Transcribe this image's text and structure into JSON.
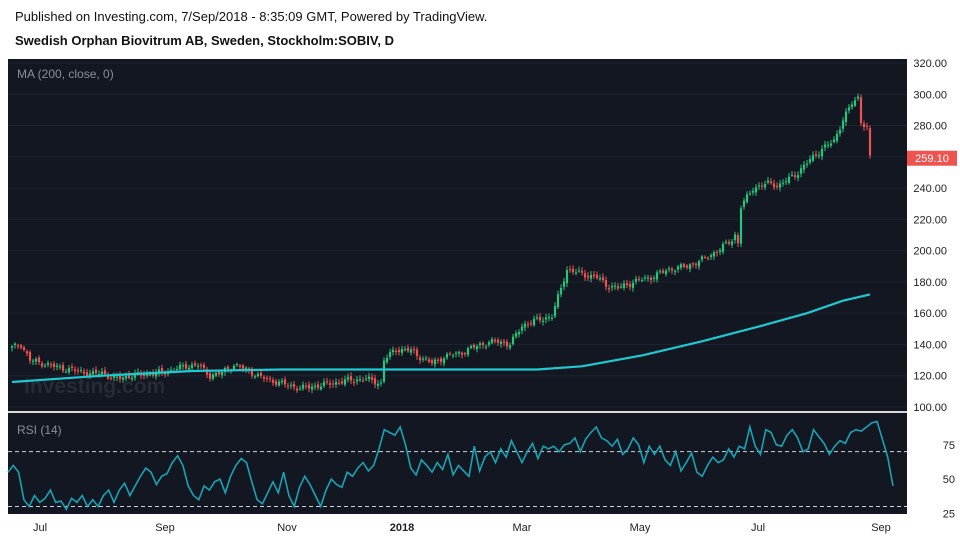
{
  "header": {
    "published": "Published on Investing.com, 7/Sep/2018 - 8:35:09 GMT, Powered by TradingView.",
    "symbol": "Swedish Orphan Biovitrum AB, Sweden, Stockholm:SOBIV, D"
  },
  "watermark": "Investing.com",
  "colors": {
    "background": "#131722",
    "up": "#26c77a",
    "down": "#ef5350",
    "ma": "#1fc9d2",
    "rsi": "#1aa3b4",
    "price_tag": "#ef5350"
  },
  "chart_data": [
    {
      "type": "candlestick",
      "indicator_label": "MA (200, close, 0)",
      "last_price_label": "259.10",
      "ylim": [
        100,
        320
      ],
      "y_ticks": [
        "320.00",
        "300.00",
        "280.00",
        "260.00",
        "240.00",
        "220.00",
        "200.00",
        "180.00",
        "160.00",
        "140.00",
        "120.00",
        "100.00"
      ],
      "y_tick_values": [
        320,
        300,
        280,
        260,
        240,
        220,
        200,
        180,
        160,
        140,
        120,
        100
      ],
      "x_ticks": [
        "Jul",
        "Sep",
        "Nov",
        "2018",
        "Mar",
        "May",
        "Jul",
        "Sep"
      ],
      "price_anchors": [
        [
          0,
          138
        ],
        [
          3,
          140
        ],
        [
          6,
          130
        ],
        [
          10,
          128
        ],
        [
          16,
          125
        ],
        [
          22,
          123
        ],
        [
          27,
          121
        ],
        [
          30,
          122
        ],
        [
          34,
          118
        ],
        [
          40,
          120
        ],
        [
          50,
          122
        ],
        [
          58,
          126
        ],
        [
          62,
          127
        ],
        [
          66,
          120
        ],
        [
          70,
          122
        ],
        [
          74,
          127
        ],
        [
          78,
          124
        ],
        [
          83,
          119
        ],
        [
          90,
          115
        ],
        [
          96,
          112
        ],
        [
          100,
          113
        ],
        [
          106,
          115
        ],
        [
          112,
          117
        ],
        [
          118,
          118
        ],
        [
          123,
          115
        ],
        [
          124,
          130
        ],
        [
          128,
          137
        ],
        [
          133,
          136
        ],
        [
          136,
          132
        ],
        [
          140,
          128
        ],
        [
          144,
          132
        ],
        [
          150,
          135
        ],
        [
          156,
          140
        ],
        [
          162,
          142
        ],
        [
          166,
          140
        ],
        [
          170,
          152
        ],
        [
          174,
          155
        ],
        [
          178,
          157
        ],
        [
          180,
          158
        ],
        [
          182,
          170
        ],
        [
          185,
          188
        ],
        [
          190,
          185
        ],
        [
          195,
          183
        ],
        [
          198,
          178
        ],
        [
          202,
          176
        ],
        [
          207,
          180
        ],
        [
          213,
          183
        ],
        [
          219,
          188
        ],
        [
          225,
          190
        ],
        [
          231,
          195
        ],
        [
          236,
          201
        ],
        [
          240,
          207
        ],
        [
          241,
          210
        ],
        [
          242,
          205
        ],
        [
          243,
          228
        ],
        [
          247,
          240
        ],
        [
          252,
          243
        ],
        [
          256,
          242
        ],
        [
          259,
          246
        ],
        [
          262,
          250
        ],
        [
          266,
          258
        ],
        [
          270,
          265
        ],
        [
          274,
          270
        ],
        [
          277,
          284
        ],
        [
          280,
          294
        ],
        [
          282,
          298
        ],
        [
          283,
          283
        ],
        [
          285,
          278
        ],
        [
          286,
          259
        ]
      ],
      "ma_line": [
        [
          0,
          116
        ],
        [
          30,
          120
        ],
        [
          60,
          123
        ],
        [
          90,
          124
        ],
        [
          120,
          124
        ],
        [
          150,
          124
        ],
        [
          175,
          124
        ],
        [
          190,
          126
        ],
        [
          210,
          133
        ],
        [
          230,
          142
        ],
        [
          250,
          152
        ],
        [
          265,
          160
        ],
        [
          277,
          168
        ],
        [
          286,
          172
        ]
      ],
      "rsi": {
        "label": "RSI (14)",
        "ylim": [
          26,
          96
        ],
        "y_ticks": [
          "75",
          "50",
          "25"
        ],
        "y_tick_values": [
          75,
          50,
          25
        ],
        "bands": [
          70,
          30
        ],
        "values": [
          [
            0,
            55
          ],
          [
            2,
            60
          ],
          [
            4,
            55
          ],
          [
            6,
            35
          ],
          [
            8,
            30
          ],
          [
            10,
            38
          ],
          [
            12,
            33
          ],
          [
            14,
            36
          ],
          [
            16,
            42
          ],
          [
            18,
            33
          ],
          [
            20,
            34
          ],
          [
            22,
            28
          ],
          [
            24,
            36
          ],
          [
            26,
            33
          ],
          [
            28,
            38
          ],
          [
            30,
            30
          ],
          [
            32,
            35
          ],
          [
            34,
            30
          ],
          [
            36,
            38
          ],
          [
            38,
            42
          ],
          [
            40,
            33
          ],
          [
            42,
            42
          ],
          [
            44,
            47
          ],
          [
            46,
            38
          ],
          [
            48,
            45
          ],
          [
            50,
            52
          ],
          [
            52,
            58
          ],
          [
            54,
            55
          ],
          [
            56,
            46
          ],
          [
            58,
            52
          ],
          [
            60,
            54
          ],
          [
            62,
            62
          ],
          [
            64,
            67
          ],
          [
            66,
            60
          ],
          [
            68,
            45
          ],
          [
            70,
            38
          ],
          [
            72,
            35
          ],
          [
            74,
            45
          ],
          [
            76,
            42
          ],
          [
            78,
            48
          ],
          [
            80,
            50
          ],
          [
            82,
            40
          ],
          [
            84,
            52
          ],
          [
            86,
            60
          ],
          [
            88,
            65
          ],
          [
            90,
            62
          ],
          [
            92,
            48
          ],
          [
            94,
            35
          ],
          [
            96,
            32
          ],
          [
            98,
            40
          ],
          [
            100,
            48
          ],
          [
            102,
            40
          ],
          [
            104,
            55
          ],
          [
            106,
            38
          ],
          [
            108,
            30
          ],
          [
            110,
            44
          ],
          [
            112,
            52
          ],
          [
            114,
            46
          ],
          [
            116,
            38
          ],
          [
            118,
            30
          ],
          [
            120,
            42
          ],
          [
            122,
            50
          ],
          [
            124,
            46
          ],
          [
            126,
            44
          ],
          [
            128,
            55
          ],
          [
            130,
            52
          ],
          [
            132,
            58
          ],
          [
            134,
            62
          ],
          [
            136,
            56
          ],
          [
            138,
            60
          ],
          [
            140,
            72
          ],
          [
            142,
            86
          ],
          [
            144,
            84
          ],
          [
            146,
            82
          ],
          [
            148,
            88
          ],
          [
            150,
            75
          ],
          [
            152,
            58
          ],
          [
            154,
            53
          ],
          [
            156,
            64
          ],
          [
            158,
            60
          ],
          [
            160,
            55
          ],
          [
            162,
            62
          ],
          [
            164,
            57
          ],
          [
            166,
            68
          ],
          [
            168,
            53
          ],
          [
            170,
            60
          ],
          [
            172,
            56
          ],
          [
            174,
            52
          ],
          [
            176,
            74
          ],
          [
            178,
            56
          ],
          [
            180,
            66
          ],
          [
            182,
            70
          ],
          [
            184,
            62
          ],
          [
            186,
            72
          ],
          [
            188,
            66
          ],
          [
            190,
            78
          ],
          [
            192,
            70
          ],
          [
            194,
            62
          ],
          [
            196,
            70
          ],
          [
            198,
            76
          ],
          [
            200,
            65
          ],
          [
            202,
            74
          ],
          [
            204,
            72
          ],
          [
            206,
            74
          ],
          [
            208,
            70
          ],
          [
            210,
            75
          ],
          [
            212,
            76
          ],
          [
            214,
            80
          ],
          [
            216,
            70
          ],
          [
            218,
            79
          ],
          [
            220,
            84
          ],
          [
            222,
            88
          ],
          [
            224,
            80
          ],
          [
            226,
            78
          ],
          [
            228,
            74
          ],
          [
            230,
            79
          ],
          [
            232,
            68
          ],
          [
            234,
            72
          ],
          [
            236,
            80
          ],
          [
            238,
            75
          ],
          [
            240,
            62
          ],
          [
            242,
            74
          ],
          [
            244,
            68
          ],
          [
            246,
            74
          ],
          [
            248,
            64
          ],
          [
            250,
            60
          ],
          [
            252,
            70
          ],
          [
            254,
            56
          ],
          [
            256,
            62
          ],
          [
            258,
            69
          ],
          [
            260,
            55
          ],
          [
            262,
            52
          ],
          [
            264,
            60
          ],
          [
            266,
            66
          ],
          [
            268,
            62
          ],
          [
            270,
            64
          ],
          [
            272,
            72
          ],
          [
            274,
            66
          ],
          [
            276,
            74
          ],
          [
            278,
            72
          ],
          [
            280,
            88
          ],
          [
            282,
            74
          ],
          [
            284,
            68
          ],
          [
            286,
            86
          ],
          [
            288,
            84
          ],
          [
            290,
            75
          ],
          [
            292,
            74
          ],
          [
            294,
            82
          ],
          [
            296,
            86
          ],
          [
            298,
            80
          ],
          [
            300,
            70
          ],
          [
            302,
            72
          ],
          [
            304,
            86
          ],
          [
            306,
            81
          ],
          [
            308,
            76
          ],
          [
            310,
            68
          ],
          [
            312,
            74
          ],
          [
            314,
            78
          ],
          [
            316,
            76
          ],
          [
            318,
            84
          ],
          [
            320,
            86
          ],
          [
            322,
            85
          ],
          [
            324,
            88
          ],
          [
            326,
            91
          ],
          [
            328,
            92
          ],
          [
            330,
            79
          ],
          [
            332,
            66
          ],
          [
            334,
            45
          ]
        ]
      }
    }
  ]
}
